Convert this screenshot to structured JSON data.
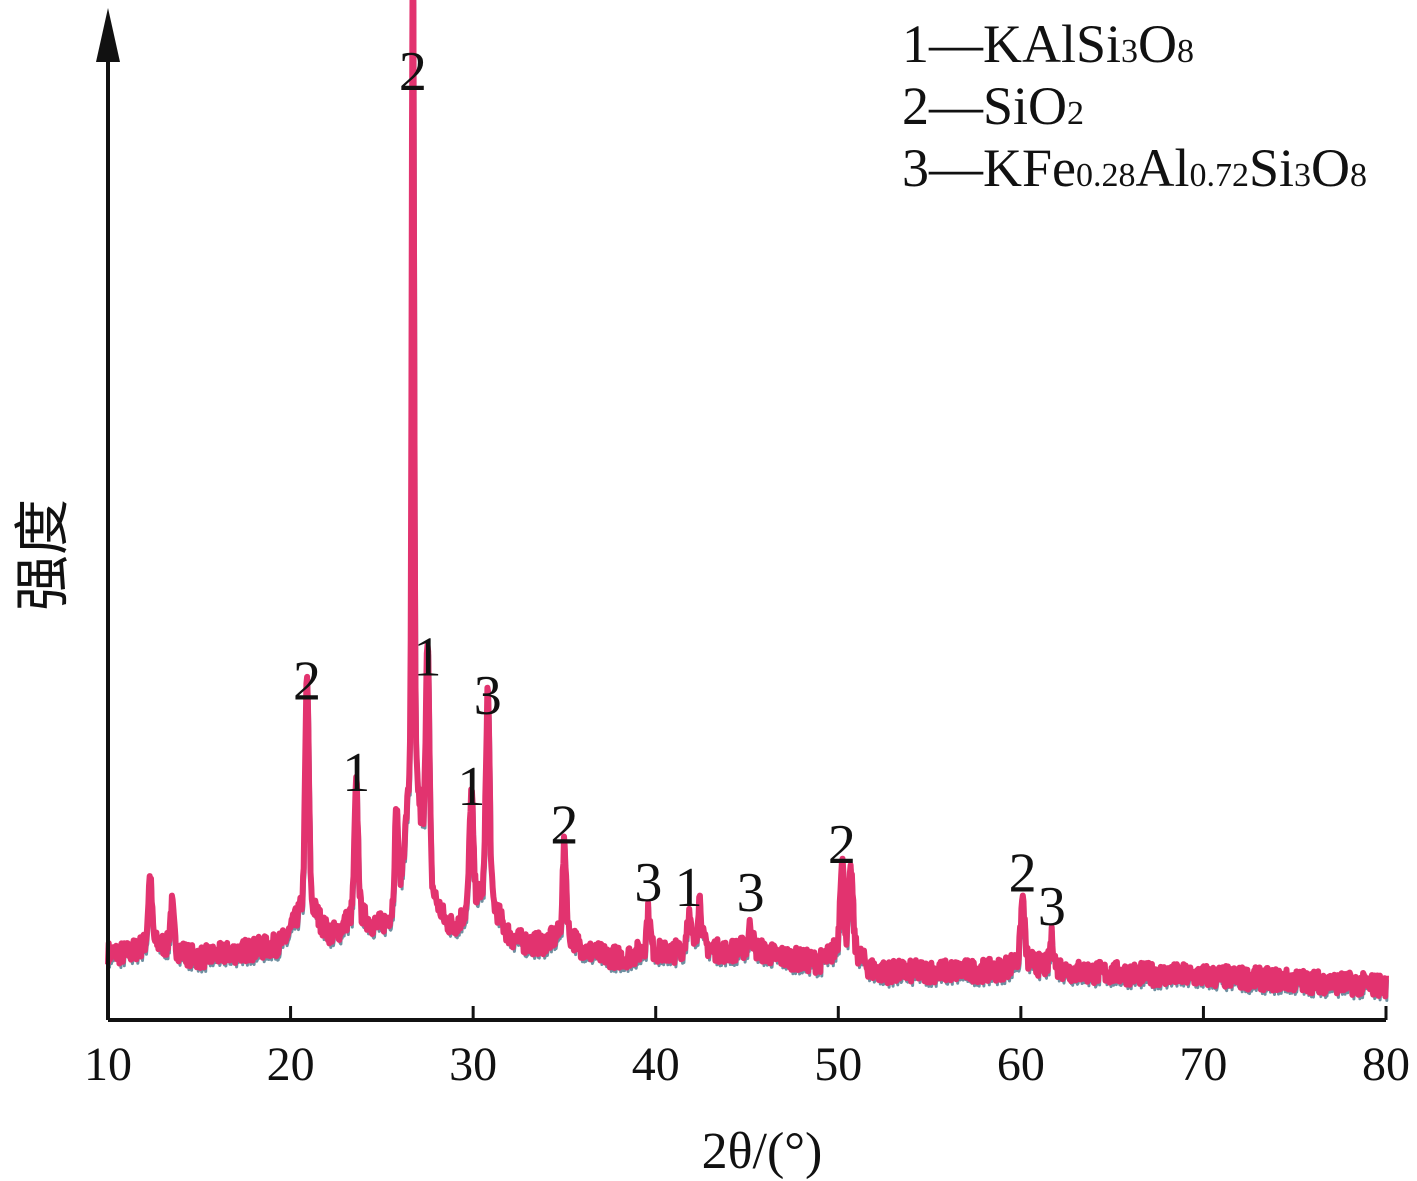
{
  "chart_data": {
    "type": "line",
    "xlabel": "2θ/(°)",
    "ylabel": "强度",
    "xlim": [
      10,
      80
    ],
    "ylim": [
      0,
      100
    ],
    "xticks": [
      "10",
      "20",
      "30",
      "40",
      "50",
      "60",
      "70",
      "80"
    ],
    "grid": false,
    "legend_position": "top-right",
    "colors": {
      "line": "#e2336f",
      "line_shadow": "#6d8fa0",
      "axis": "#111111"
    },
    "legend": [
      {
        "key": "1",
        "sep": "—",
        "parts": [
          {
            "t": "KAlSi",
            "sub": false
          },
          {
            "t": "3",
            "sub": true
          },
          {
            "t": "O",
            "sub": false
          },
          {
            "t": "8",
            "sub": true
          }
        ]
      },
      {
        "key": "2",
        "sep": "—",
        "parts": [
          {
            "t": "SiO",
            "sub": false
          },
          {
            "t": "2",
            "sub": true
          }
        ]
      },
      {
        "key": "3",
        "sep": "—",
        "parts": [
          {
            "t": "KFe",
            "sub": false
          },
          {
            "t": "0.28",
            "sub": true
          },
          {
            "t": "Al",
            "sub": false
          },
          {
            "t": "0.72",
            "sub": true
          },
          {
            "t": "Si",
            "sub": false
          },
          {
            "t": "3",
            "sub": true
          },
          {
            "t": "O",
            "sub": false
          },
          {
            "t": "8",
            "sub": true
          }
        ]
      }
    ],
    "baseline": [
      [
        10,
        7.0
      ],
      [
        15,
        6.5
      ],
      [
        20,
        8.0
      ],
      [
        26,
        9.5
      ],
      [
        30,
        9.0
      ],
      [
        38,
        6.5
      ],
      [
        45,
        7.2
      ],
      [
        52,
        5.0
      ],
      [
        60,
        5.2
      ],
      [
        70,
        4.6
      ],
      [
        80,
        3.6
      ]
    ],
    "peaks": [
      {
        "x": 12.3,
        "y": 13.5,
        "label": ""
      },
      {
        "x": 13.5,
        "y": 11.0,
        "label": ""
      },
      {
        "x": 20.9,
        "y": 31.5,
        "label": "2"
      },
      {
        "x": 23.6,
        "y": 22.0,
        "label": "1"
      },
      {
        "x": 25.8,
        "y": 19.0,
        "label": ""
      },
      {
        "x": 26.7,
        "y": 95.0,
        "label": "2"
      },
      {
        "x": 27.5,
        "y": 34.0,
        "label": "1"
      },
      {
        "x": 29.9,
        "y": 20.5,
        "label": "1"
      },
      {
        "x": 30.8,
        "y": 30.0,
        "label": "3"
      },
      {
        "x": 35.0,
        "y": 16.5,
        "label": "2"
      },
      {
        "x": 39.6,
        "y": 10.5,
        "label": "3"
      },
      {
        "x": 41.8,
        "y": 10.0,
        "label": "1"
      },
      {
        "x": 42.4,
        "y": 11.5,
        "label": ""
      },
      {
        "x": 45.2,
        "y": 9.5,
        "label": "3"
      },
      {
        "x": 50.2,
        "y": 14.5,
        "label": "2"
      },
      {
        "x": 50.7,
        "y": 13.0,
        "label": ""
      },
      {
        "x": 60.1,
        "y": 11.5,
        "label": "2"
      },
      {
        "x": 61.7,
        "y": 8.0,
        "label": "3"
      }
    ]
  }
}
